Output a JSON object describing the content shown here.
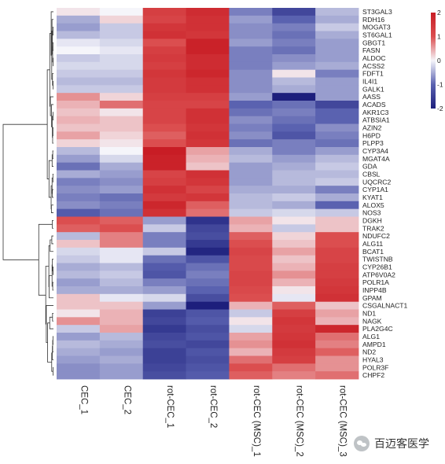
{
  "chart_data": {
    "type": "heatmap",
    "colorbar": {
      "ticks": [
        2,
        1,
        0,
        -1,
        -2
      ],
      "colors": [
        "#1d1f7c",
        "#5a62b0",
        "#f5f5fa",
        "#db4e4f",
        "#c81d25"
      ]
    },
    "columns": [
      "CEC_1",
      "CEC_2",
      "rot-CEC_1",
      "rot-CEC_2",
      "rot-CEC (MSC)_1",
      "rot-CEC (MSC)_2",
      "rot-CEC (MSC)_3"
    ],
    "rows": [
      "ST3GAL3",
      "RDH16",
      "MOGAT3",
      "ST6GAL1",
      "GBGT1",
      "FASN",
      "ALDOC",
      "ACSS2",
      "FDFT1",
      "IL4I1",
      "GALK1",
      "AASS",
      "ACADS",
      "AKR1C3",
      "ATBSIA1",
      "AZIN2",
      "H6PD",
      "PLPP3",
      "CYP3A4",
      "MGAT4A",
      "GDA",
      "CBSL",
      "UQCRC2",
      "CYP1A1",
      "KYAT1",
      "ALOX5",
      "NOS3",
      "DGKH",
      "TRAK2",
      "NDUFC2",
      "ALG11",
      "BCAT1",
      "TWISTNB",
      "CYP26B1",
      "ATP6V0A2",
      "POLR1A",
      "INPP4B",
      "GPAM",
      "CSGALNACT1",
      "ND1",
      "NAGK",
      "PLA2G4C",
      "ALG1",
      "AMPD1",
      "ND2",
      "HYAL3",
      "POLR3F",
      "CHPF2"
    ],
    "values": [
      [
        0.1,
        0.0,
        1.3,
        1.7,
        -0.8,
        -1.4,
        -0.4
      ],
      [
        -0.5,
        0.2,
        1.2,
        1.6,
        -0.6,
        -1.0,
        -0.5
      ],
      [
        -0.6,
        -0.3,
        1.5,
        1.6,
        -0.7,
        -0.8,
        -0.3
      ],
      [
        -0.4,
        -0.3,
        1.6,
        1.5,
        -0.7,
        -0.9,
        -0.5
      ],
      [
        -0.1,
        -0.2,
        1.0,
        1.9,
        -0.6,
        -0.8,
        -0.6
      ],
      [
        0.0,
        -0.1,
        1.3,
        1.9,
        -0.8,
        -0.9,
        -0.6
      ],
      [
        -0.3,
        -0.2,
        1.4,
        1.7,
        -0.8,
        -0.7,
        -0.6
      ],
      [
        -0.2,
        -0.2,
        1.3,
        1.7,
        -0.8,
        -0.6,
        -0.5
      ],
      [
        -0.3,
        -0.3,
        1.5,
        1.8,
        -0.7,
        0.1,
        -0.8
      ],
      [
        -0.4,
        -0.4,
        1.4,
        1.6,
        -0.7,
        -0.4,
        -0.6
      ],
      [
        -0.3,
        -0.3,
        1.4,
        1.6,
        -0.7,
        -0.5,
        -0.6
      ],
      [
        0.6,
        0.2,
        1.3,
        1.3,
        -0.6,
        -2.0,
        -0.6
      ],
      [
        0.4,
        0.8,
        1.2,
        1.2,
        -1.0,
        -0.9,
        -1.4
      ],
      [
        0.3,
        0.1,
        1.2,
        1.6,
        -0.9,
        -0.8,
        -1.0
      ],
      [
        0.4,
        0.3,
        1.2,
        1.6,
        -0.7,
        -0.9,
        -1.0
      ],
      [
        0.3,
        0.3,
        1.0,
        1.5,
        -0.8,
        -1.0,
        -0.7
      ],
      [
        0.5,
        0.2,
        0.9,
        1.6,
        -0.7,
        -1.2,
        -0.8
      ],
      [
        0.2,
        0.1,
        1.0,
        1.5,
        -0.9,
        -0.8,
        -0.9
      ],
      [
        -0.4,
        0.0,
        2.0,
        0.5,
        -0.5,
        -0.8,
        -0.6
      ],
      [
        -0.6,
        -0.2,
        1.9,
        0.4,
        -0.4,
        -0.6,
        -0.4
      ],
      [
        -0.9,
        -0.5,
        1.9,
        0.3,
        -0.6,
        -0.5,
        -0.3
      ],
      [
        -0.5,
        -0.6,
        1.2,
        1.6,
        -0.6,
        -0.4,
        -0.4
      ],
      [
        -0.8,
        -0.7,
        1.3,
        1.5,
        -0.6,
        -0.4,
        -0.3
      ],
      [
        -0.7,
        -0.6,
        1.6,
        1.2,
        -0.5,
        -0.5,
        -0.8
      ],
      [
        -0.8,
        -0.9,
        1.4,
        1.5,
        -0.4,
        -0.3,
        -0.5
      ],
      [
        -0.7,
        -0.8,
        1.8,
        0.9,
        -0.4,
        -0.5,
        -1.0
      ],
      [
        -1.1,
        -0.9,
        1.6,
        0.8,
        -0.3,
        -0.2,
        -0.3
      ],
      [
        1.0,
        0.9,
        -0.6,
        -1.7,
        0.5,
        0.1,
        0.3
      ],
      [
        0.9,
        1.0,
        -0.3,
        -1.4,
        0.4,
        -0.3,
        0.3
      ],
      [
        -0.4,
        0.7,
        -0.8,
        -1.3,
        0.9,
        0.2,
        1.0
      ],
      [
        0.3,
        0.7,
        -0.8,
        -1.6,
        1.0,
        0.3,
        1.0
      ],
      [
        -0.2,
        -0.1,
        -0.3,
        -1.9,
        1.2,
        0.5,
        1.2
      ],
      [
        -0.3,
        -0.1,
        -0.9,
        -1.2,
        1.1,
        0.3,
        1.2
      ],
      [
        -0.5,
        -0.4,
        -1.1,
        -0.9,
        1.1,
        0.4,
        1.3
      ],
      [
        -0.4,
        -0.3,
        -1.2,
        -0.8,
        1.2,
        0.6,
        1.3
      ],
      [
        -0.6,
        -0.4,
        -0.8,
        -0.9,
        1.2,
        0.4,
        1.4
      ],
      [
        -0.5,
        -0.5,
        -0.6,
        -1.0,
        1.1,
        0.1,
        1.5
      ],
      [
        0.3,
        -0.1,
        -0.2,
        -1.3,
        1.0,
        -0.1,
        1.6
      ],
      [
        0.3,
        0.3,
        -0.6,
        -2.0,
        0.4,
        0.9,
        0.3
      ],
      [
        0.1,
        0.4,
        -1.5,
        -1.2,
        -0.3,
        1.3,
        0.5
      ],
      [
        0.6,
        0.4,
        -1.4,
        -1.1,
        0.1,
        1.5,
        0.4
      ],
      [
        -0.3,
        0.5,
        -1.6,
        -1.3,
        -0.2,
        1.4,
        1.8
      ],
      [
        -0.6,
        -0.4,
        -1.4,
        -1.2,
        0.5,
        1.5,
        0.8
      ],
      [
        -0.4,
        -0.5,
        -1.3,
        -1.4,
        0.6,
        1.6,
        0.7
      ],
      [
        -0.5,
        -0.6,
        -1.5,
        -1.2,
        0.4,
        1.4,
        0.9
      ],
      [
        -0.6,
        -0.5,
        -1.5,
        -1.3,
        0.8,
        1.3,
        0.6
      ],
      [
        -0.7,
        -0.6,
        -1.4,
        -1.2,
        1.0,
        0.8,
        0.6
      ],
      [
        -0.7,
        -0.6,
        -1.3,
        -1.1,
        0.9,
        0.7,
        0.8
      ]
    ]
  },
  "watermark": {
    "text": "百迈客医学"
  }
}
